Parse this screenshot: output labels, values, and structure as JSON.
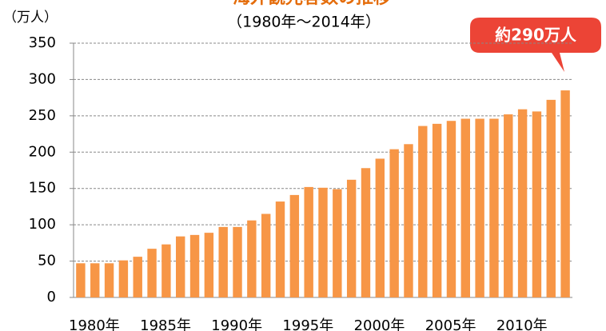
{
  "chart_data": {
    "type": "bar",
    "title": "海外観光客数の推移",
    "subtitle": "（1980年～2014年）",
    "y_label": "（万人）",
    "annotation": "約290万人",
    "categories": [
      "1980年",
      null,
      null,
      null,
      null,
      "1985年",
      null,
      null,
      null,
      null,
      "1990年",
      null,
      null,
      null,
      null,
      "1995年",
      null,
      null,
      null,
      null,
      "2000年",
      null,
      null,
      null,
      null,
      "2005年",
      null,
      null,
      null,
      null,
      "2010年",
      null,
      null,
      null,
      null
    ],
    "values": [
      47,
      47,
      47,
      51,
      56,
      67,
      73,
      84,
      86,
      89,
      97,
      97,
      106,
      115,
      132,
      141,
      152,
      151,
      149,
      162,
      178,
      191,
      204,
      211,
      236,
      239,
      243,
      246,
      246,
      246,
      252,
      259,
      256,
      272,
      285
    ],
    "color": "#f79646",
    "ylim": [
      0,
      350
    ],
    "yticks": [
      0,
      50,
      100,
      150,
      200,
      250,
      300,
      350
    ],
    "grid": true
  }
}
